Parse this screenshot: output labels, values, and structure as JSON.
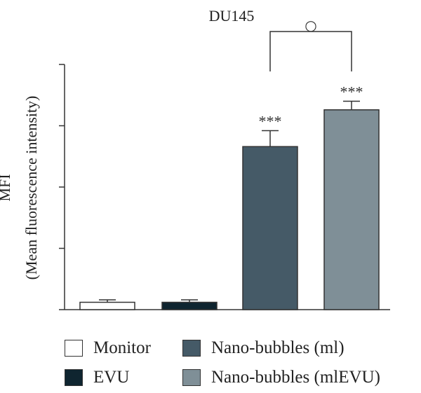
{
  "chart_data": {
    "type": "bar",
    "title": "DU145",
    "ylabel_line1": "MFI",
    "ylabel_line2": "(Mean fluorescence intensity)",
    "categories": [
      "Monitor",
      "EVU",
      "Nano-bubbles (ml)",
      "Nano-bubbles (mlEVU)"
    ],
    "values": [
      3,
      3,
      66.5,
      81.5
    ],
    "errors": [
      1,
      1,
      6.5,
      3.5
    ],
    "colors": [
      "#ffffff",
      "#0f2530",
      "#455a67",
      "#7f8f97"
    ],
    "annotations": [
      "",
      "",
      "***",
      "***"
    ],
    "comparison": {
      "between": [
        2,
        3
      ],
      "marker": "○"
    },
    "ylim": [
      0,
      100
    ],
    "yticks": [
      0,
      25,
      50,
      75,
      100
    ],
    "ytick_labels_shown": false,
    "grid": false,
    "legend_position": "bottom"
  },
  "legend": {
    "items": [
      {
        "label": "Monitor",
        "color": "#ffffff"
      },
      {
        "label": "Nano-bubbles (ml)",
        "color": "#455a67"
      },
      {
        "label": "EVU",
        "color": "#0f2530"
      },
      {
        "label": "Nano-bubbles (mlEVU)",
        "color": "#7f8f97"
      }
    ]
  }
}
